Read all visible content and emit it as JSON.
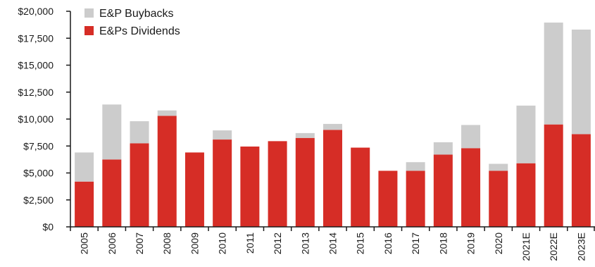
{
  "chart_data": {
    "type": "bar",
    "stacked": true,
    "title": "",
    "xlabel": "",
    "ylabel": "",
    "ylim": [
      0,
      20000
    ],
    "yticks": [
      0,
      2500,
      5000,
      7500,
      10000,
      12500,
      15000,
      17500,
      20000
    ],
    "ytick_labels": [
      "$0",
      "$2,500",
      "$5,000",
      "$7,500",
      "$10,000",
      "$12,500",
      "$15,000",
      "$17,500",
      "$20,000"
    ],
    "categories": [
      "2005",
      "2006",
      "2007",
      "2008",
      "2009",
      "2010",
      "2011",
      "2012",
      "2013",
      "2014",
      "2015",
      "2016",
      "2017",
      "2018",
      "2019",
      "2020",
      "2021E",
      "2022E",
      "2023E"
    ],
    "series": [
      {
        "name": "E&Ps Dividends",
        "color": "#d62d26",
        "values": [
          4200,
          6250,
          7750,
          10300,
          6900,
          8100,
          7450,
          7950,
          8250,
          9000,
          7350,
          5200,
          5200,
          6700,
          7300,
          5200,
          5900,
          9500,
          8600
        ]
      },
      {
        "name": "E&P Buybacks",
        "color": "#cccccc",
        "values": [
          2700,
          5100,
          2050,
          500,
          0,
          850,
          0,
          0,
          450,
          550,
          0,
          0,
          800,
          1150,
          2150,
          650,
          5350,
          9450,
          9700
        ]
      }
    ],
    "legend": {
      "position": "top-left",
      "items": [
        {
          "label": "E&P Buybacks",
          "color": "#cccccc"
        },
        {
          "label": "E&Ps Dividends",
          "color": "#d62d26"
        }
      ]
    },
    "grid": false
  }
}
